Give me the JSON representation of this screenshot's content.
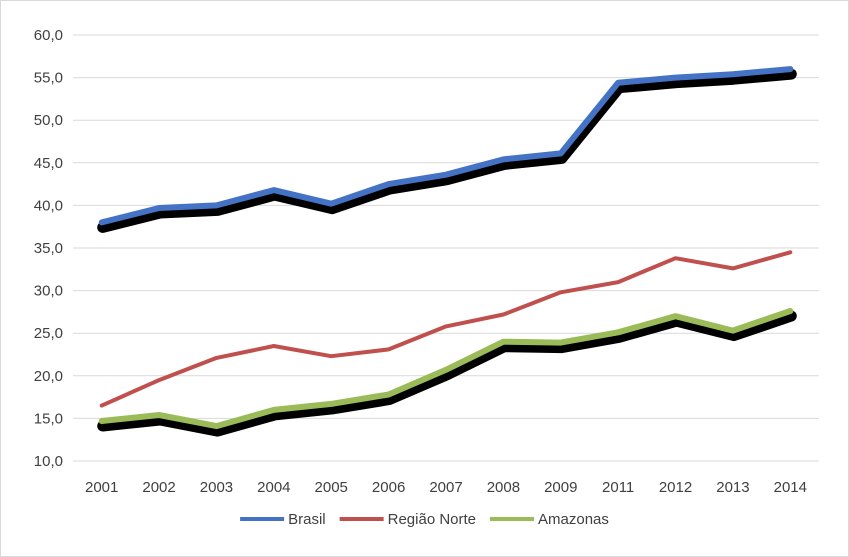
{
  "chart_data": {
    "type": "line",
    "title": "",
    "xlabel": "",
    "ylabel": "",
    "categories": [
      "2001",
      "2002",
      "2003",
      "2004",
      "2005",
      "2006",
      "2007",
      "2008",
      "2009",
      "2011",
      "2012",
      "2013",
      "2014"
    ],
    "y_ticks": [
      "10,0",
      "15,0",
      "20,0",
      "25,0",
      "30,0",
      "35,0",
      "40,0",
      "45,0",
      "50,0",
      "55,0",
      "60,0"
    ],
    "ylim": [
      10,
      60
    ],
    "grid": "horizontal",
    "legend_position": "bottom",
    "series": [
      {
        "name": "Brasil",
        "color": "#4472c4",
        "shadow": true,
        "values": [
          38.0,
          39.7,
          40.0,
          41.8,
          40.2,
          42.5,
          43.6,
          45.4,
          46.1,
          54.4,
          55.0,
          55.4,
          56.0
        ]
      },
      {
        "name": "Região Norte",
        "color": "#c0504d",
        "shadow": false,
        "values": [
          16.5,
          19.5,
          22.1,
          23.5,
          22.3,
          23.1,
          25.8,
          27.2,
          29.8,
          31.0,
          33.8,
          32.6,
          34.5
        ]
      },
      {
        "name": "Amazonas",
        "color": "#9bbb59",
        "shadow": true,
        "values": [
          14.7,
          15.4,
          14.1,
          16.0,
          16.7,
          17.8,
          20.7,
          24.0,
          23.9,
          25.1,
          27.0,
          25.3,
          27.6
        ]
      }
    ]
  }
}
